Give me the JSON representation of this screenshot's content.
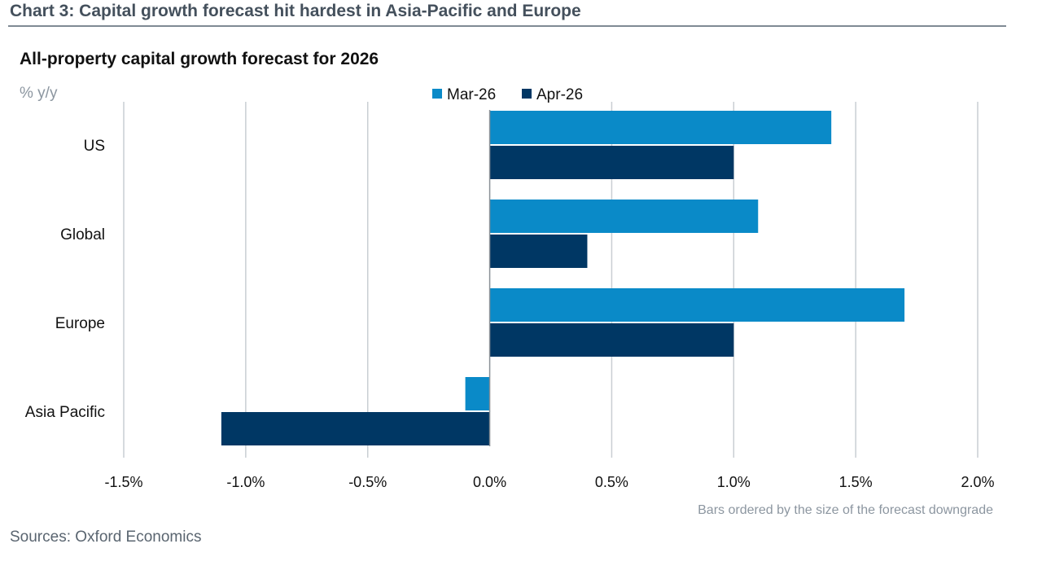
{
  "header": {
    "title": "Chart 3: Capital growth forecast hit hardest in Asia-Pacific and Europe"
  },
  "chart_data": {
    "type": "bar",
    "orientation": "horizontal",
    "title": "All-property capital growth forecast for 2026",
    "unit_label": "% y/y",
    "categories": [
      "US",
      "Global",
      "Europe",
      "Asia Pacific"
    ],
    "series": [
      {
        "name": "Mar-26",
        "color": "#0a8ac8",
        "values": [
          1.4,
          1.1,
          1.7,
          -0.1
        ]
      },
      {
        "name": "Apr-26",
        "color": "#003764",
        "values": [
          1.0,
          0.4,
          1.0,
          -1.1
        ]
      }
    ],
    "xlim": [
      -1.5,
      2.0
    ],
    "xticks": [
      -1.5,
      -1.0,
      -0.5,
      0.0,
      0.5,
      1.0,
      1.5,
      2.0
    ],
    "xtick_labels": [
      "-1.5%",
      "-1.0%",
      "-0.5%",
      "0.0%",
      "0.5%",
      "1.0%",
      "1.5%",
      "2.0%"
    ],
    "grid": true,
    "legend_position": "top-center"
  },
  "note": "Bars ordered by the size of the forecast downgrade",
  "source": "Sources: Oxford Economics"
}
